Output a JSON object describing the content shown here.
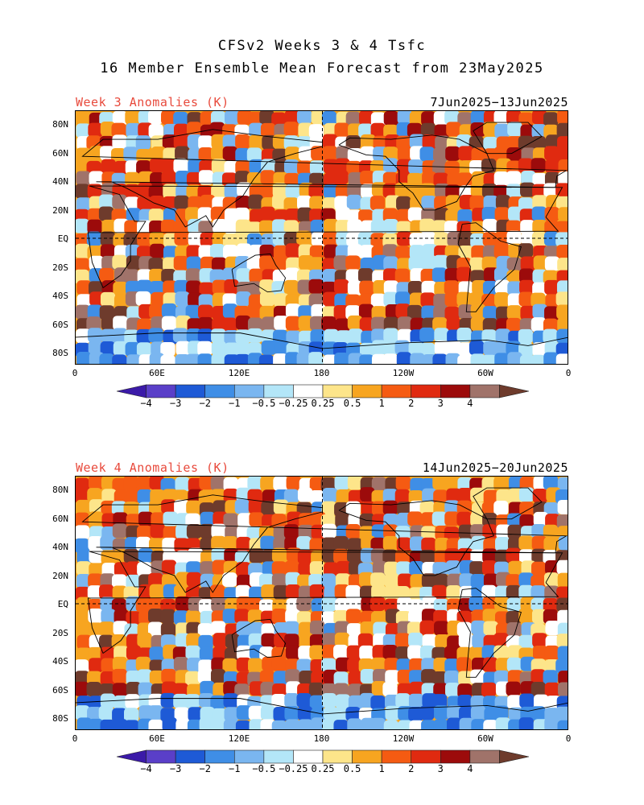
{
  "header": {
    "line1": "CFSv2 Weeks 3 & 4 Tsfc",
    "line2": "16 Member Ensemble Mean Forecast from 23May2025"
  },
  "panels": [
    {
      "title": "Week 3 Anomalies (K)",
      "dates": "7Jun2025−13Jun2025"
    },
    {
      "title": "Week 4 Anomalies (K)",
      "dates": "14Jun2025−20Jun2025"
    }
  ],
  "lat_labels": [
    "80N",
    "60N",
    "40N",
    "20N",
    "EQ",
    "20S",
    "40S",
    "60S",
    "80S"
  ],
  "lon_labels": [
    "0",
    "60E",
    "120E",
    "180",
    "120W",
    "60W",
    "0"
  ],
  "colorbar": {
    "tick_labels": [
      "−4",
      "−3",
      "−2",
      "−1",
      "−0.5",
      "−0.25",
      "0.25",
      "0.5",
      "1",
      "2",
      "3",
      "4"
    ],
    "colors": [
      "#3b1aa8",
      "#5a3fc8",
      "#1e5ad6",
      "#3f8ee6",
      "#7ab6f0",
      "#b3e6f8",
      "#ffffff",
      "#fde58a",
      "#f7a520",
      "#f55b12",
      "#e02a10",
      "#9c0b0b",
      "#a0736a",
      "#6e3b2c"
    ]
  },
  "palette": {
    "title_red": "#e84a3c",
    "land_outline": "#000000"
  }
}
